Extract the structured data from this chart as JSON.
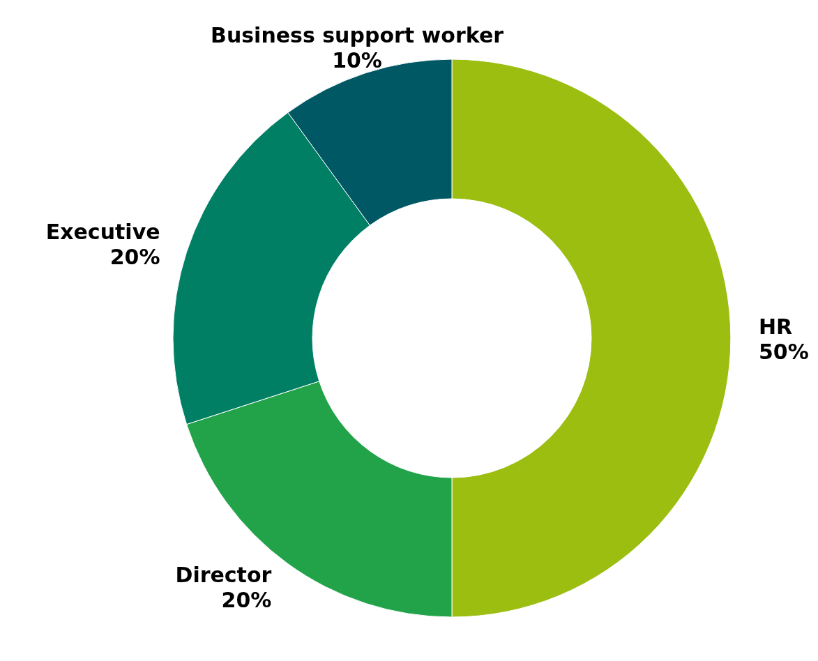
{
  "chart_data": {
    "type": "donut",
    "categories": [
      "HR",
      "Director",
      "Executive",
      "Business support worker"
    ],
    "values": [
      50,
      20,
      20,
      10
    ],
    "colors": [
      "#9bbe10",
      "#22a34a",
      "#007f65",
      "#005864"
    ],
    "value_labels": [
      "50%",
      "20%",
      "20%",
      "10%"
    ],
    "legend": false
  }
}
